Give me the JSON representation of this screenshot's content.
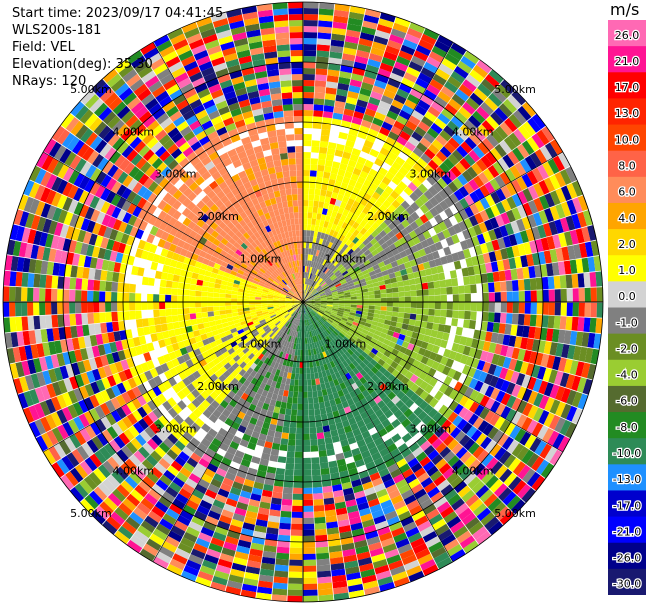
{
  "header": {
    "start_time": "Start time: 2023/09/17 04:41:45",
    "instrument": "WLS200s-181",
    "field": "Field: VEL",
    "elevation": "Elevation(deg): 35.30",
    "nrays": "NRays: 120"
  },
  "colorbar": {
    "unit": "m/s",
    "tick_labels": [
      "26.0",
      "21.0",
      "17.0",
      "13.0",
      "10.0",
      "8.0",
      "6.0",
      "4.0",
      "2.0",
      "1.0",
      "0.0",
      "-1.0",
      "-2.0",
      "-4.0",
      "-6.0",
      "-8.0",
      "-10.0",
      "-13.0",
      "-17.0",
      "-21.0",
      "-26.0",
      "-30.0"
    ],
    "colors": [
      "#ff69b4",
      "#ff1493",
      "#ff0000",
      "#ff2400",
      "#ff4500",
      "#ff6347",
      "#ff8c5a",
      "#ffa500",
      "#ffd700",
      "#ffff00",
      "#d3d3d3",
      "#808080",
      "#6b8e23",
      "#9acd32",
      "#556b2f",
      "#228b22",
      "#2e8b57",
      "#1e90ff",
      "#0000cd",
      "#0000ff",
      "#00008b",
      "#191970"
    ]
  },
  "chart_data": {
    "type": "heatmap",
    "projection": "polar-ppi",
    "field": "VEL",
    "unit": "m/s",
    "n_rays": 120,
    "elevation_deg": 35.3,
    "value_range": [
      -30.0,
      26.0
    ],
    "range_ring_labels": [
      "1.00km",
      "1.00km",
      "1.00km",
      "1.00km",
      "2.00km",
      "2.00km",
      "2.00km",
      "2.00km",
      "3.00km",
      "3.00km",
      "3.00km",
      "3.00km",
      "4.00km",
      "4.00km",
      "4.00km",
      "4.00km",
      "5.00km",
      "5.00km",
      "5.00km",
      "5.00km"
    ],
    "range_rings_km": [
      1,
      2,
      3,
      4,
      5
    ],
    "max_range_km": 5.0,
    "velocity_pattern": {
      "near_range_km": 3.0,
      "north_west_sector": "positive (salmon / orange)",
      "north_east_sector": "slightly negative (gray / olive)",
      "south_sector": "negative (green)",
      "west_sector": "positive (yellow)",
      "far_range": "noise (random colors)"
    }
  }
}
